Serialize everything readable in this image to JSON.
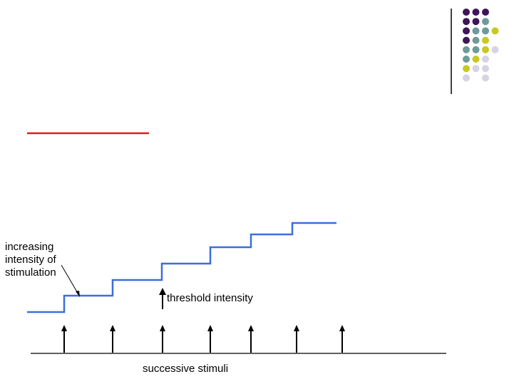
{
  "labels": {
    "increasing_line1": "increasing",
    "increasing_line2": "intensity of",
    "increasing_line3": "stimulation",
    "threshold": "threshold intensity",
    "successive": "successive stimuli"
  },
  "colors": {
    "staircase": "#3b6fd8",
    "title_underline": "#e01b1b",
    "dot_purple": "#3d1559",
    "dot_teal": "#6e9a9a",
    "dot_yellow": "#c8c824",
    "dot_lavender": "#d4d4e4"
  },
  "decor_dot_grid": [
    [
      "purple",
      "purple",
      "purple",
      null
    ],
    [
      "purple",
      "purple",
      "teal",
      null
    ],
    [
      "purple",
      "teal",
      "teal",
      "yellow"
    ],
    [
      "purple",
      "teal",
      "yellow",
      null
    ],
    [
      "teal",
      "teal",
      "yellow",
      "lavender"
    ],
    [
      "teal",
      "yellow",
      "lavender",
      null
    ],
    [
      "yellow",
      "lavender",
      "lavender",
      null
    ],
    [
      "lavender",
      null,
      "lavender",
      null
    ]
  ],
  "stimuli_count": 7,
  "staircase_steps": 7
}
